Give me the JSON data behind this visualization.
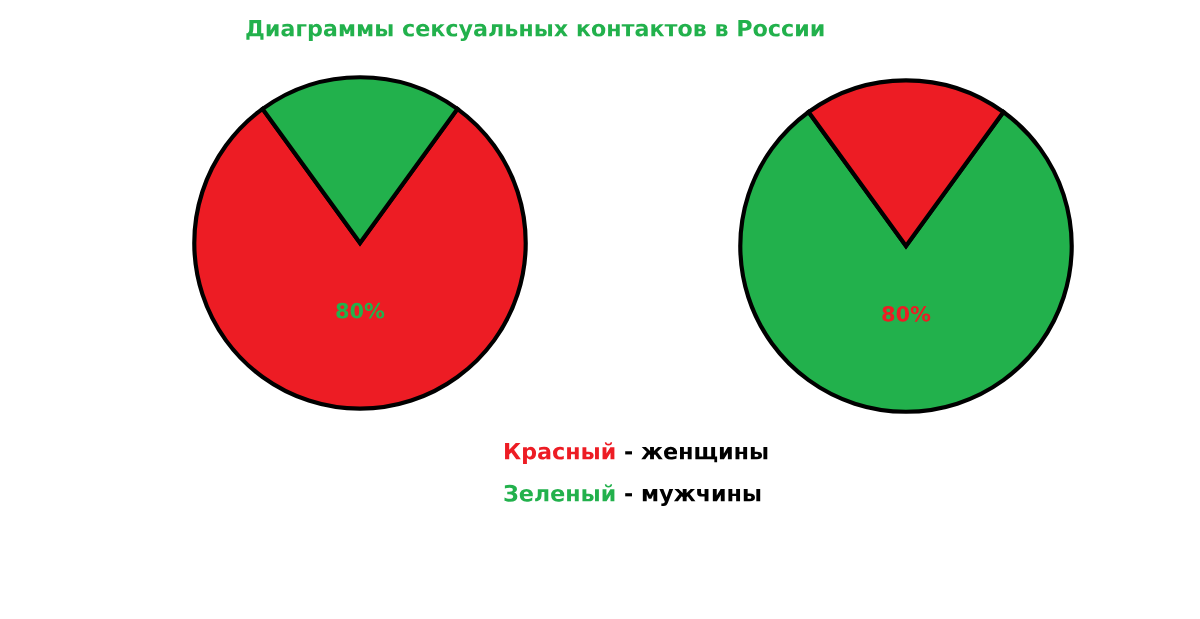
{
  "chart_data": [
    {
      "type": "pie",
      "title": "Диаграммы сексуальных контактов в России",
      "categories": [
        null,
        null
      ],
      "values": [
        80,
        20
      ],
      "colors": [
        "#ed1c24",
        "#22b14c"
      ],
      "value_labels": [
        "80%",
        null
      ]
    },
    {
      "type": "pie",
      "categories": [
        null,
        null
      ],
      "values": [
        80,
        20
      ],
      "colors": [
        "#22b14c",
        "#ed1c24"
      ],
      "value_labels": [
        "80%",
        null
      ],
      "annotations": [
        "Красный - женщины",
        "Зеленый - мужчины"
      ]
    }
  ]
}
